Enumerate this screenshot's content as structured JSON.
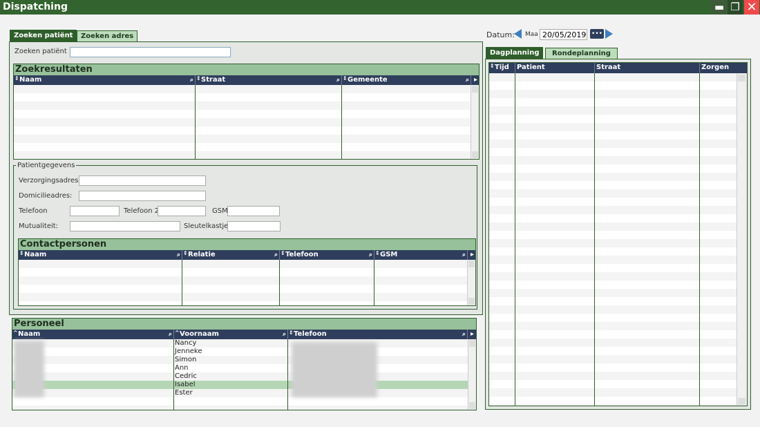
{
  "window": {
    "title": "Dispatching",
    "minimize_icon": "minimize-icon",
    "restore_icon": "restore-icon",
    "close_icon": "close-icon"
  },
  "left_tabs": [
    {
      "label": "Zoeken patiënt",
      "active": true
    },
    {
      "label": "Zoeken adres",
      "active": false
    }
  ],
  "search": {
    "label": "Zoeken patiënt",
    "value": ""
  },
  "zoekresultaten": {
    "title": "Zoekresultaten",
    "columns": [
      "Naam",
      "Straat",
      "Gemeente"
    ]
  },
  "patientgegevens": {
    "legend": "Patientgegevens",
    "verzorgingsadres": "Verzorgingsadres:",
    "domicilieadres": "Domicilieadres:",
    "telefoon": "Telefoon",
    "telefoon2": "Telefoon 2",
    "gsm": "GSM",
    "mutualiteit": "Mutualiteit:",
    "sleutelkastje": "Sleutelkastje"
  },
  "contactpersonen": {
    "title": "Contactpersonen",
    "columns": [
      "Naam",
      "Relatie",
      "Telefoon",
      "GSM"
    ]
  },
  "personeel": {
    "title": "Personeel",
    "columns": [
      "Naam",
      "Voornaam",
      "Telefoon"
    ],
    "rows": [
      {
        "voornaam": "Nancy"
      },
      {
        "voornaam": "Jenneke"
      },
      {
        "voornaam": "Simon"
      },
      {
        "voornaam": "Ann"
      },
      {
        "voornaam": "Cedric"
      },
      {
        "voornaam": "Isabel",
        "selected": true
      },
      {
        "voornaam": "Ester"
      }
    ],
    "selected_color": "#b5d6b5"
  },
  "datum": {
    "label": "Datum:",
    "day": "Maa",
    "value": "20/05/2019",
    "picker_label": "•••"
  },
  "right_tabs": [
    {
      "label": "Dagplanning",
      "active": true
    },
    {
      "label": "Rondeplanning",
      "active": false
    }
  ],
  "dagplanning": {
    "columns": [
      "Tijd",
      "Patient",
      "Straat",
      "Zorgen"
    ]
  },
  "colors": {
    "titlebar": "#33632f",
    "header": "#2f3e5c",
    "section": "#97c19a",
    "close": "#f04a4a"
  }
}
